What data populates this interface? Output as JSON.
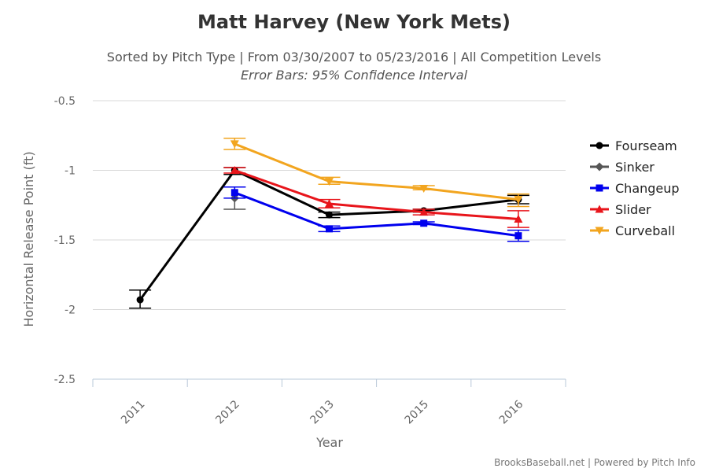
{
  "chart_data": {
    "type": "line",
    "title": "Matt Harvey (New York Mets)",
    "subtitle": "Sorted by Pitch Type | From 03/30/2007 to 05/23/2016 | All Competition Levels",
    "subtitle2": "Error Bars: 95% Confidence Interval",
    "xlabel": "Year",
    "ylabel": "Horizontal Release Point (ft)",
    "categories": [
      "2011",
      "2012",
      "2013",
      "2015",
      "2016"
    ],
    "y_ticks": [
      "-0.5",
      "-1",
      "-1.5",
      "-2",
      "-2.5"
    ],
    "y_tick_values": [
      -0.5,
      -1,
      -1.5,
      -2,
      -2.5
    ],
    "ylim": [
      -2.5,
      -0.5
    ],
    "series": [
      {
        "name": "Fourseam",
        "color": "#000000",
        "marker": "circle",
        "values": [
          -1.93,
          -1.0,
          -1.32,
          -1.29,
          -1.21
        ],
        "err_low": [
          -1.99,
          -1.03,
          -1.34,
          -1.3,
          -1.24
        ],
        "err_high": [
          -1.86,
          -0.98,
          -1.3,
          -1.28,
          -1.18
        ]
      },
      {
        "name": "Sinker",
        "color": "#555555",
        "marker": "diamond",
        "values": [
          null,
          -1.2,
          null,
          null,
          null
        ],
        "err_low": [
          null,
          -1.28,
          null,
          null,
          null
        ],
        "err_high": [
          null,
          -1.12,
          null,
          null,
          null
        ]
      },
      {
        "name": "Changeup",
        "color": "#0000ee",
        "marker": "square",
        "values": [
          null,
          -1.16,
          -1.42,
          -1.38,
          -1.47
        ],
        "err_low": [
          null,
          -1.2,
          -1.44,
          -1.39,
          -1.51
        ],
        "err_high": [
          null,
          -1.12,
          -1.4,
          -1.37,
          -1.43
        ]
      },
      {
        "name": "Slider",
        "color": "#e8151b",
        "marker": "triangle",
        "values": [
          null,
          -1.0,
          -1.24,
          -1.3,
          -1.35
        ],
        "err_low": [
          null,
          -1.02,
          -1.27,
          -1.32,
          -1.41
        ],
        "err_high": [
          null,
          -0.98,
          -1.21,
          -1.28,
          -1.29
        ]
      },
      {
        "name": "Curveball",
        "color": "#f2a51f",
        "marker": "triangle-down",
        "values": [
          null,
          -0.81,
          -1.08,
          -1.13,
          -1.21
        ],
        "err_low": [
          null,
          -0.85,
          -1.1,
          -1.14,
          -1.26
        ],
        "err_high": [
          null,
          -0.77,
          -1.05,
          -1.11,
          -1.17
        ]
      }
    ],
    "legend_position": "right",
    "credits": "BrooksBaseball.net | Powered by Pitch Info"
  }
}
